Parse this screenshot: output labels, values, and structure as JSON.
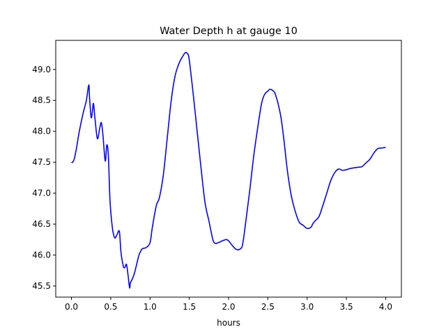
{
  "chart_data": {
    "type": "line",
    "title": "Water Depth h at gauge 10",
    "xlabel": "hours",
    "ylabel": "",
    "xlim": [
      -0.2,
      4.2
    ],
    "ylim": [
      45.32,
      49.47
    ],
    "xticks": [
      0.0,
      0.5,
      1.0,
      1.5,
      2.0,
      2.5,
      3.0,
      3.5,
      4.0
    ],
    "xtick_labels": [
      "0.0",
      "0.5",
      "1.0",
      "1.5",
      "2.0",
      "2.5",
      "3.0",
      "3.5",
      "4.0"
    ],
    "yticks": [
      45.5,
      46.0,
      46.5,
      47.0,
      47.5,
      48.0,
      48.5,
      49.0
    ],
    "ytick_labels": [
      "45.5",
      "46.0",
      "46.5",
      "47.0",
      "47.5",
      "48.0",
      "48.5",
      "49.0"
    ],
    "grid": false,
    "series": [
      {
        "color": "#0000ff",
        "x": [
          0.0,
          0.03,
          0.06,
          0.1,
          0.15,
          0.19,
          0.22,
          0.23,
          0.25,
          0.265,
          0.28,
          0.3,
          0.33,
          0.36,
          0.38,
          0.4,
          0.43,
          0.45,
          0.47,
          0.49,
          0.52,
          0.55,
          0.58,
          0.61,
          0.63,
          0.66,
          0.68,
          0.7,
          0.72,
          0.74,
          0.75,
          0.77,
          0.8,
          0.83,
          0.86,
          0.9,
          0.95,
          1.0,
          1.03,
          1.08,
          1.12,
          1.17,
          1.22,
          1.27,
          1.32,
          1.37,
          1.42,
          1.45,
          1.48,
          1.5,
          1.55,
          1.6,
          1.65,
          1.7,
          1.75,
          1.8,
          1.83,
          1.87,
          1.92,
          1.97,
          2.0,
          2.05,
          2.1,
          2.15,
          2.18,
          2.22,
          2.27,
          2.32,
          2.37,
          2.42,
          2.46,
          2.5,
          2.53,
          2.58,
          2.6,
          2.63,
          2.67,
          2.71,
          2.75,
          2.8,
          2.85,
          2.9,
          2.95,
          3.0,
          3.05,
          3.07,
          3.1,
          3.15,
          3.2,
          3.25,
          3.3,
          3.35,
          3.4,
          3.45,
          3.5,
          3.55,
          3.6,
          3.65,
          3.7,
          3.75,
          3.8,
          3.85,
          3.9,
          3.95,
          4.0
        ],
        "y": [
          47.49,
          47.53,
          47.7,
          48.0,
          48.3,
          48.5,
          48.75,
          48.55,
          48.23,
          48.3,
          48.45,
          48.2,
          47.88,
          48.05,
          48.14,
          47.95,
          47.52,
          47.78,
          47.6,
          46.9,
          46.45,
          46.28,
          46.33,
          46.38,
          46.05,
          45.82,
          45.8,
          45.85,
          45.68,
          45.47,
          45.55,
          45.6,
          45.7,
          45.85,
          46.0,
          46.1,
          46.12,
          46.2,
          46.45,
          46.8,
          46.93,
          47.3,
          47.9,
          48.5,
          48.9,
          49.1,
          49.22,
          49.27,
          49.25,
          49.15,
          48.6,
          48.0,
          47.4,
          46.85,
          46.55,
          46.25,
          46.19,
          46.2,
          46.23,
          46.25,
          46.23,
          46.15,
          46.09,
          46.1,
          46.18,
          46.55,
          47.05,
          47.6,
          48.05,
          48.45,
          48.6,
          48.65,
          48.68,
          48.64,
          48.58,
          48.45,
          48.2,
          47.8,
          47.35,
          46.95,
          46.7,
          46.53,
          46.48,
          46.43,
          46.45,
          46.5,
          46.55,
          46.62,
          46.8,
          47.0,
          47.2,
          47.33,
          47.39,
          47.37,
          47.38,
          47.4,
          47.41,
          47.42,
          47.43,
          47.49,
          47.55,
          47.65,
          47.72,
          47.73,
          47.74
        ]
      }
    ]
  }
}
